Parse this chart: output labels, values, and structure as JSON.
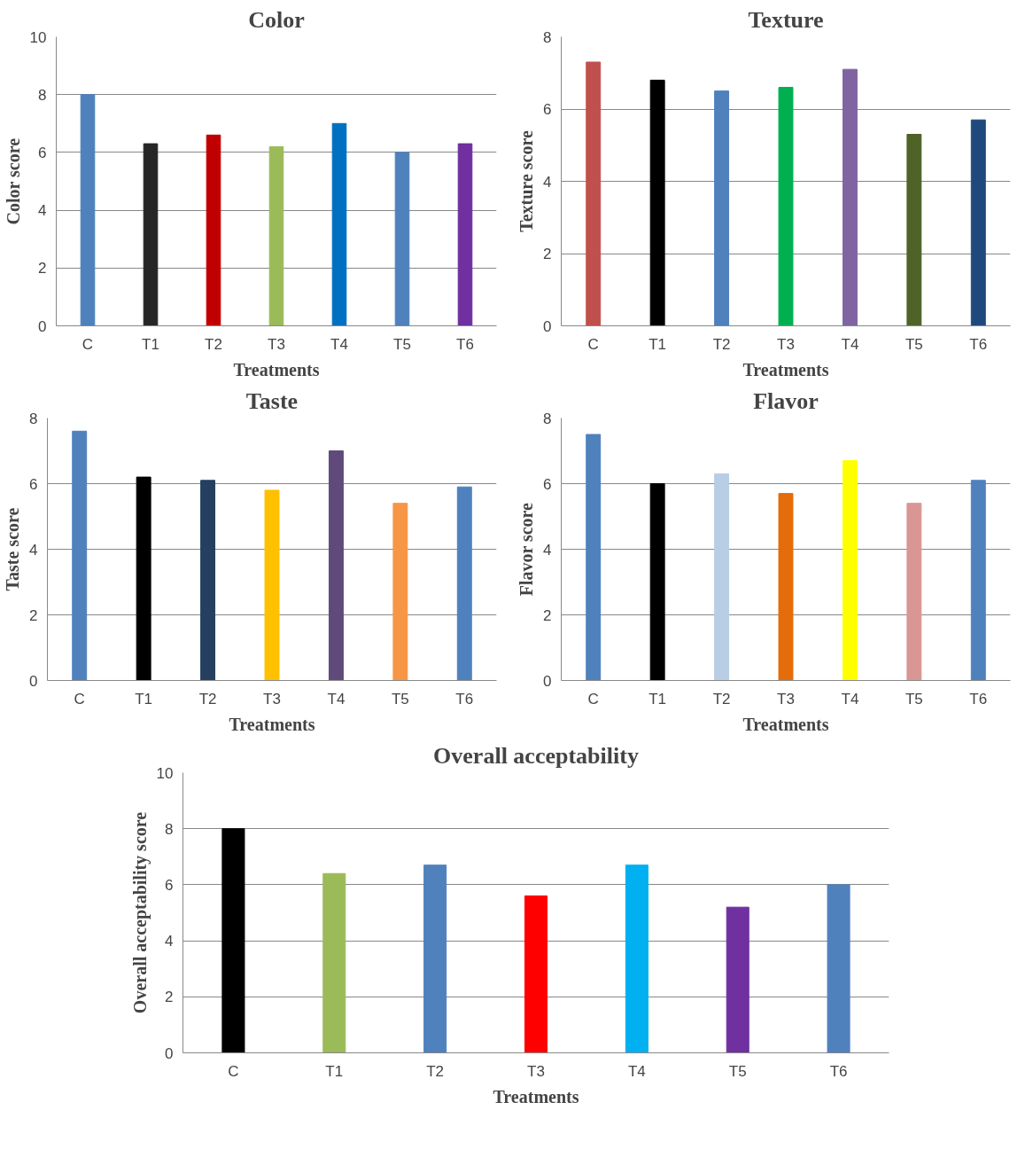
{
  "chart_data": [
    {
      "type": "bar",
      "title": "Color",
      "xlabel": "Treatments",
      "ylabel": "Color score",
      "categories": [
        "C",
        "T1",
        "T2",
        "T3",
        "T4",
        "T5",
        "T6"
      ],
      "values": [
        8.0,
        6.3,
        6.6,
        6.2,
        7.0,
        6.0,
        6.3
      ],
      "colors": [
        "#4f81bd",
        "#262626",
        "#c00000",
        "#9bbb59",
        "#0070c0",
        "#4f81bd",
        "#7030a0"
      ],
      "ylim": [
        0,
        10
      ],
      "yticks": [
        0,
        2,
        4,
        6,
        8,
        10
      ],
      "grid": "y"
    },
    {
      "type": "bar",
      "title": "Texture",
      "xlabel": "Treatments",
      "ylabel": "Texture score",
      "categories": [
        "C",
        "T1",
        "T2",
        "T3",
        "T4",
        "T5",
        "T6"
      ],
      "values": [
        7.3,
        6.8,
        6.5,
        6.6,
        7.1,
        5.3,
        5.7
      ],
      "colors": [
        "#c0504d",
        "#000000",
        "#4f81bd",
        "#00b050",
        "#8064a2",
        "#4f6228",
        "#1f497d"
      ],
      "ylim": [
        0,
        8
      ],
      "yticks": [
        0,
        2,
        4,
        6,
        8
      ],
      "grid": "y"
    },
    {
      "type": "bar",
      "title": "Taste",
      "xlabel": "Treatments",
      "ylabel": "Taste score",
      "categories": [
        "C",
        "T1",
        "T2",
        "T3",
        "T4",
        "T5",
        "T6"
      ],
      "values": [
        7.6,
        6.2,
        6.1,
        5.8,
        7.0,
        5.4,
        5.9
      ],
      "colors": [
        "#4f81bd",
        "#000000",
        "#243f60",
        "#ffc000",
        "#604a7b",
        "#f79646",
        "#4f81bd"
      ],
      "ylim": [
        0,
        8
      ],
      "yticks": [
        0,
        2,
        4,
        6,
        8
      ],
      "grid": "y"
    },
    {
      "type": "bar",
      "title": "Flavor",
      "xlabel": "Treatments",
      "ylabel": "Flavor score",
      "categories": [
        "C",
        "T1",
        "T2",
        "T3",
        "T4",
        "T5",
        "T6"
      ],
      "values": [
        7.5,
        6.0,
        6.3,
        5.7,
        6.7,
        5.4,
        6.1
      ],
      "colors": [
        "#4f81bd",
        "#000000",
        "#b9cde5",
        "#e46c0a",
        "#ffff00",
        "#d99694",
        "#4f81bd"
      ],
      "ylim": [
        0,
        8
      ],
      "yticks": [
        0,
        2,
        4,
        6,
        8
      ],
      "grid": "y"
    },
    {
      "type": "bar",
      "title": "Overall acceptability",
      "xlabel": "Treatments",
      "ylabel": "Overall acceptability score",
      "categories": [
        "C",
        "T1",
        "T2",
        "T3",
        "T4",
        "T5",
        "T6"
      ],
      "values": [
        8.0,
        6.4,
        6.7,
        5.6,
        6.7,
        5.2,
        6.0
      ],
      "colors": [
        "#000000",
        "#9bbb59",
        "#4f81bd",
        "#ff0000",
        "#00b0f0",
        "#7030a0",
        "#4f81bd"
      ],
      "ylim": [
        0,
        10
      ],
      "yticks": [
        0,
        2,
        4,
        6,
        8,
        10
      ],
      "grid": "y"
    }
  ]
}
